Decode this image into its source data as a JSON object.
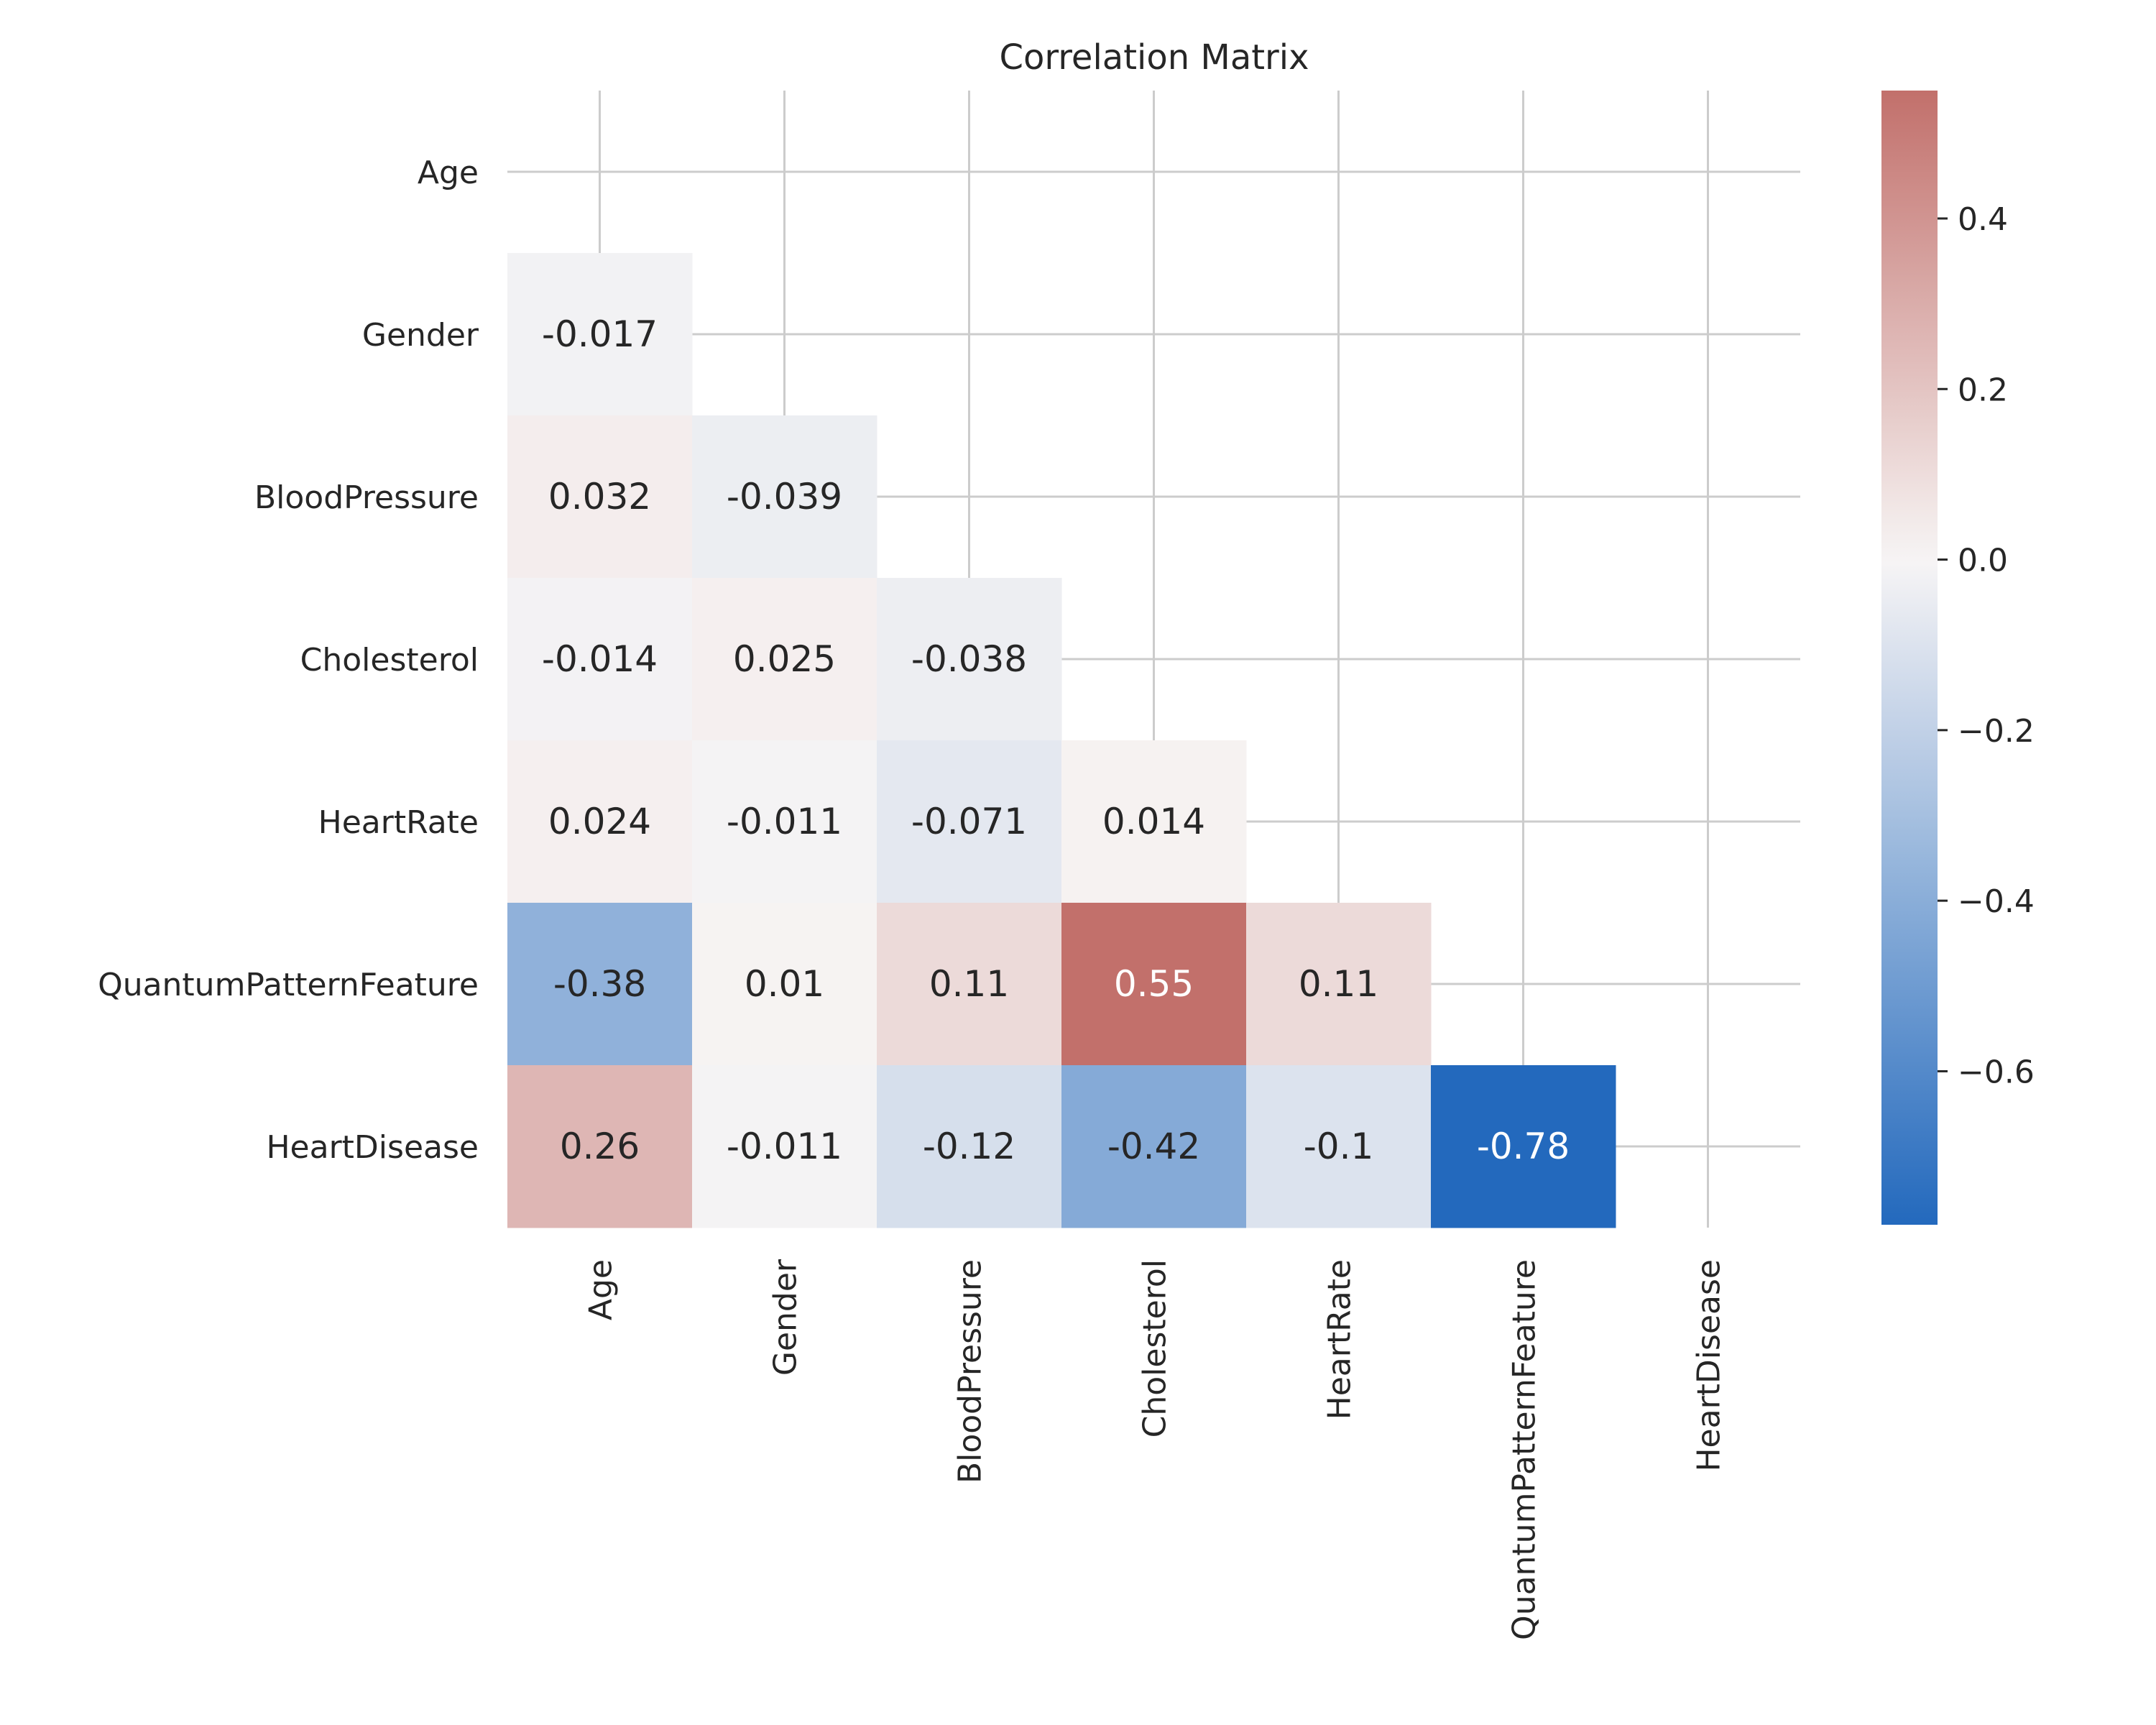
{
  "chart_data": {
    "type": "heatmap",
    "title": "Correlation Matrix",
    "variables": [
      "Age",
      "Gender",
      "BloodPressure",
      "Cholesterol",
      "HeartRate",
      "QuantumPatternFeature",
      "HeartDisease"
    ],
    "mask": "upper-triangle-including-diagonal",
    "grid": true,
    "cells": [
      {
        "row": "Gender",
        "col": "Age",
        "value": -0.017,
        "label": "-0.017"
      },
      {
        "row": "BloodPressure",
        "col": "Age",
        "value": 0.032,
        "label": "0.032"
      },
      {
        "row": "BloodPressure",
        "col": "Gender",
        "value": -0.039,
        "label": "-0.039"
      },
      {
        "row": "Cholesterol",
        "col": "Age",
        "value": -0.014,
        "label": "-0.014"
      },
      {
        "row": "Cholesterol",
        "col": "Gender",
        "value": 0.025,
        "label": "0.025"
      },
      {
        "row": "Cholesterol",
        "col": "BloodPressure",
        "value": -0.038,
        "label": "-0.038"
      },
      {
        "row": "HeartRate",
        "col": "Age",
        "value": 0.024,
        "label": "0.024"
      },
      {
        "row": "HeartRate",
        "col": "Gender",
        "value": -0.011,
        "label": "-0.011"
      },
      {
        "row": "HeartRate",
        "col": "BloodPressure",
        "value": -0.071,
        "label": "-0.071"
      },
      {
        "row": "HeartRate",
        "col": "Cholesterol",
        "value": 0.014,
        "label": "0.014"
      },
      {
        "row": "QuantumPatternFeature",
        "col": "Age",
        "value": -0.38,
        "label": "-0.38"
      },
      {
        "row": "QuantumPatternFeature",
        "col": "Gender",
        "value": 0.01,
        "label": "0.01"
      },
      {
        "row": "QuantumPatternFeature",
        "col": "BloodPressure",
        "value": 0.11,
        "label": "0.11"
      },
      {
        "row": "QuantumPatternFeature",
        "col": "Cholesterol",
        "value": 0.55,
        "label": "0.55"
      },
      {
        "row": "QuantumPatternFeature",
        "col": "HeartRate",
        "value": 0.11,
        "label": "0.11"
      },
      {
        "row": "HeartDisease",
        "col": "Age",
        "value": 0.26,
        "label": "0.26"
      },
      {
        "row": "HeartDisease",
        "col": "Gender",
        "value": -0.011,
        "label": "-0.011"
      },
      {
        "row": "HeartDisease",
        "col": "BloodPressure",
        "value": -0.12,
        "label": "-0.12"
      },
      {
        "row": "HeartDisease",
        "col": "Cholesterol",
        "value": -0.42,
        "label": "-0.42"
      },
      {
        "row": "HeartDisease",
        "col": "HeartRate",
        "value": -0.1,
        "label": "-0.1"
      },
      {
        "row": "HeartDisease",
        "col": "QuantumPatternFeature",
        "value": -0.78,
        "label": "-0.78"
      }
    ],
    "colorbar": {
      "vmin": -0.78,
      "vmax": 0.55,
      "ticks": [
        0.4,
        0.2,
        0.0,
        -0.2,
        -0.4,
        -0.6
      ],
      "tick_labels": [
        "0.4",
        "0.2",
        "0.0",
        "−0.2",
        "−0.4",
        "−0.6"
      ],
      "colormap": "vlag",
      "colors": {
        "low": "#2369bd",
        "mid": "#f7f5f5",
        "high": "#c2706b"
      }
    }
  }
}
